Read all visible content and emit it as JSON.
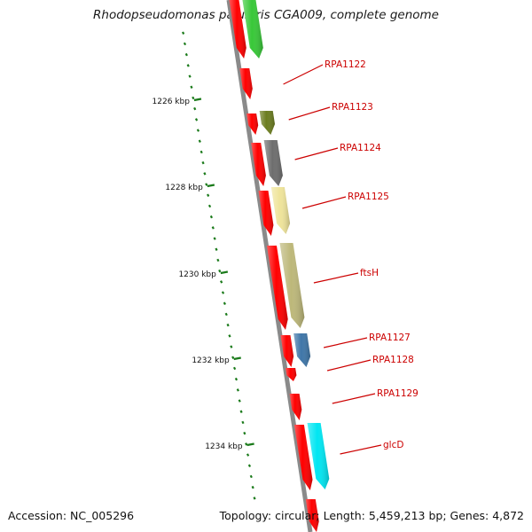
{
  "title": "Rhodopseudomonas palustris CGA009, complete genome",
  "footer": {
    "accession": "Accession: NC_005296",
    "summary": "Topology: circular; Length: 5,459,213 bp; Genes: 4,872"
  },
  "ruler": {
    "unit": "kbp",
    "labels": [
      "1226 kbp",
      "1228 kbp",
      "1230 kbp",
      "1232 kbp",
      "1234 kbp"
    ]
  },
  "colors": {
    "backbone": "#8a8a8a",
    "cds": "#ff0000",
    "ticks": "#1a7a1a",
    "labels": "#cc0000"
  },
  "genes": [
    {
      "name": "RPA1122",
      "color": "#38c838",
      "label_visible": true
    },
    {
      "name": "RPA1123",
      "color": "#6b7d1f",
      "label_visible": true
    },
    {
      "name": "RPA1124",
      "color": "#6e6e6e",
      "label_visible": true
    },
    {
      "name": "RPA1125",
      "color": "#efe49a",
      "label_visible": true
    },
    {
      "name": "ftsH",
      "color": "#bdb87a",
      "label_visible": true
    },
    {
      "name": "RPA1127",
      "color": "#3f76a8",
      "label_visible": true
    },
    {
      "name": "RPA1128",
      "color": "#ff0000",
      "label_visible": true
    },
    {
      "name": "RPA1129",
      "color": "#ff0000",
      "label_visible": true
    },
    {
      "name": "glcD",
      "color": "#00e6f2",
      "label_visible": true
    }
  ]
}
